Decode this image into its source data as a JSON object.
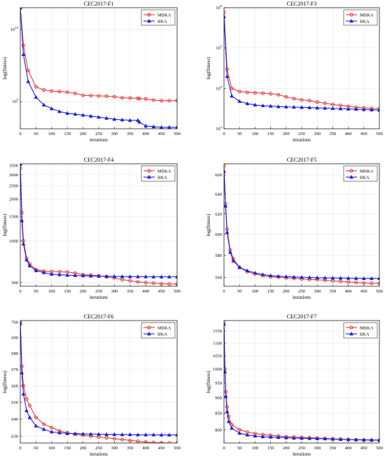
{
  "colors": {
    "mbka": "#e03a3a",
    "bka": "#1f1fd0",
    "axis": "#000000",
    "grid": "#e6e6e6"
  },
  "chart_data": [
    {
      "type": "line",
      "title": "CEC2017-F1",
      "xlabel": "iterations",
      "ylabel": "log(fitness)",
      "yscale": "log",
      "xlim": [
        0,
        500
      ],
      "ylim": [
        420000000,
        20000000000
      ],
      "xticks": [
        0,
        50,
        100,
        150,
        200,
        250,
        300,
        350,
        400,
        450,
        500
      ],
      "yticks": [
        1000000000,
        10000000000
      ],
      "ytick_labels": [
        "10^9",
        "10^10"
      ],
      "grid": true,
      "legend": "top-right",
      "x": [
        0,
        10,
        25,
        50,
        75,
        100,
        125,
        150,
        175,
        200,
        225,
        250,
        275,
        300,
        325,
        350,
        375,
        380,
        400,
        425,
        450,
        475,
        500
      ],
      "series": [
        {
          "name": "MBKA",
          "marker": "circle",
          "values": [
            20000000000,
            6000000000,
            2700000000,
            1600000000,
            1450000000,
            1400000000,
            1380000000,
            1350000000,
            1300000000,
            1220000000,
            1210000000,
            1200000000,
            1190000000,
            1170000000,
            1130000000,
            1120000000,
            1110000000,
            1100000000,
            1090000000,
            1050000000,
            1030000000,
            1030000000,
            1030000000
          ]
        },
        {
          "name": "BKA",
          "marker": "triangle",
          "values": [
            20000000000,
            4500000000,
            1900000000,
            1150000000,
            900000000,
            800000000,
            730000000,
            690000000,
            670000000,
            650000000,
            630000000,
            610000000,
            590000000,
            570000000,
            560000000,
            550000000,
            550000000,
            520000000,
            460000000,
            450000000,
            440000000,
            440000000,
            440000000
          ]
        }
      ]
    },
    {
      "type": "line",
      "title": "CEC2017-F3",
      "xlabel": "iterations",
      "ylabel": "log(fitness)",
      "yscale": "log",
      "xlim": [
        0,
        500
      ],
      "ylim": [
        1000,
        1000000
      ],
      "xticks": [
        0,
        50,
        100,
        150,
        200,
        250,
        300,
        350,
        400,
        450,
        500
      ],
      "yticks": [
        1000,
        10000,
        100000,
        1000000
      ],
      "ytick_labels": [
        "10^3",
        "10^4",
        "10^5",
        "10^6"
      ],
      "grid": true,
      "legend": "top-right",
      "x": [
        0,
        10,
        25,
        50,
        75,
        100,
        125,
        150,
        175,
        200,
        225,
        250,
        275,
        300,
        325,
        350,
        375,
        400,
        425,
        450,
        475,
        500
      ],
      "series": [
        {
          "name": "MBKA",
          "marker": "circle",
          "values": [
            780000,
            30000,
            10000,
            8400,
            8000,
            7800,
            7600,
            7400,
            7000,
            6200,
            5600,
            5200,
            5000,
            4600,
            4300,
            4000,
            3800,
            3600,
            3400,
            3300,
            3200,
            3150
          ]
        },
        {
          "name": "BKA",
          "marker": "triangle",
          "values": [
            600000,
            20000,
            6500,
            4800,
            4200,
            3900,
            3750,
            3650,
            3550,
            3500,
            3450,
            3400,
            3350,
            3300,
            3250,
            3200,
            3150,
            3100,
            3050,
            3000,
            2950,
            2900
          ]
        }
      ]
    },
    {
      "type": "line",
      "title": "CEC2017-F4",
      "xlabel": "iterations",
      "ylabel": "log(fitness)",
      "yscale": "log",
      "xlim": [
        0,
        500
      ],
      "ylim": [
        470,
        3600
      ],
      "xticks": [
        0,
        50,
        100,
        150,
        200,
        250,
        300,
        350,
        400,
        450,
        500
      ],
      "yticks": [
        500,
        1000,
        1500,
        2000,
        2500,
        3000,
        3500
      ],
      "ytick_labels": [
        "500",
        "1000",
        "1500",
        "2000",
        "2500",
        "3000",
        "3500"
      ],
      "grid": true,
      "legend": "top-right",
      "x": [
        0,
        5,
        10,
        20,
        30,
        50,
        75,
        100,
        125,
        150,
        175,
        200,
        225,
        250,
        275,
        300,
        325,
        350,
        375,
        400,
        425,
        450,
        475,
        500
      ],
      "series": [
        {
          "name": "MBKA",
          "marker": "circle",
          "values": [
            3350,
            1600,
            1000,
            750,
            680,
            620,
            605,
            600,
            598,
            595,
            585,
            570,
            565,
            560,
            550,
            540,
            525,
            515,
            505,
            500,
            495,
            490,
            488,
            487
          ]
        },
        {
          "name": "BKA",
          "marker": "triangle",
          "values": [
            3600,
            1400,
            950,
            730,
            660,
            610,
            590,
            575,
            570,
            565,
            562,
            560,
            558,
            556,
            555,
            554,
            553,
            552,
            551,
            551,
            550,
            550,
            550,
            550
          ]
        }
      ]
    },
    {
      "type": "line",
      "title": "CEC2017-F5",
      "xlabel": "iterations",
      "ylabel": "log(fitness)",
      "yscale": "log",
      "xlim": [
        0,
        500
      ],
      "ylim": [
        552,
        672
      ],
      "xticks": [
        0,
        50,
        100,
        150,
        200,
        250,
        300,
        350,
        400,
        450,
        500
      ],
      "yticks": [
        560,
        580,
        600,
        620,
        640,
        660
      ],
      "ytick_labels": [
        "560",
        "580",
        "600",
        "620",
        "640",
        "660"
      ],
      "grid": true,
      "legend": "top-right",
      "x": [
        0,
        5,
        10,
        20,
        30,
        50,
        75,
        100,
        125,
        150,
        175,
        200,
        225,
        250,
        275,
        300,
        325,
        350,
        375,
        400,
        425,
        450,
        475,
        500
      ],
      "series": [
        {
          "name": "MBKA",
          "marker": "circle",
          "values": [
            670,
            630,
            605,
            585,
            577,
            569,
            565,
            563,
            561.5,
            560.5,
            560,
            559.5,
            559,
            558.5,
            558,
            557.8,
            557.3,
            556.8,
            556.3,
            555.8,
            555.4,
            555,
            554.7,
            554.5
          ]
        },
        {
          "name": "BKA",
          "marker": "triangle",
          "values": [
            664,
            628,
            602,
            583,
            575,
            569,
            566,
            564,
            562.5,
            561.5,
            561,
            560.6,
            560.3,
            560,
            559.8,
            559.6,
            559.5,
            559.4,
            559.3,
            559.2,
            559.1,
            559,
            559,
            559
          ]
        }
      ]
    },
    {
      "type": "line",
      "title": "CEC2017-F6",
      "xlabel": "iterations",
      "ylabel": "log(fitness)",
      "yscale": "log",
      "xlim": [
        0,
        500
      ],
      "ylim": [
        626,
        701
      ],
      "xticks": [
        0,
        50,
        100,
        150,
        200,
        250,
        300,
        350,
        400,
        450,
        500
      ],
      "yticks": [
        630,
        640,
        650,
        660,
        670,
        680,
        690,
        700
      ],
      "ytick_labels": [
        "630",
        "640",
        "650",
        "660",
        "670",
        "680",
        "690",
        "700"
      ],
      "grid": true,
      "legend": "top-right",
      "x": [
        0,
        5,
        10,
        20,
        30,
        50,
        75,
        100,
        125,
        150,
        175,
        200,
        225,
        250,
        275,
        300,
        325,
        350,
        375,
        400,
        425,
        450,
        475,
        500
      ],
      "series": [
        {
          "name": "MBKA",
          "marker": "circle",
          "values": [
            700,
            672,
            660,
            652,
            648,
            641,
            637,
            635,
            633,
            632,
            631,
            630.5,
            630,
            629.5,
            629,
            628.5,
            628,
            627.5,
            627,
            626.5,
            626.3,
            626.1,
            626,
            626
          ]
        },
        {
          "name": "BKA",
          "marker": "triangle",
          "values": [
            699,
            668,
            655,
            645,
            641,
            636,
            634,
            632.5,
            632,
            631.5,
            631.5,
            631.3,
            631.2,
            631.1,
            631,
            631,
            630.9,
            630.9,
            630.8,
            630.8,
            630.8,
            630.7,
            630.7,
            630.7
          ]
        }
      ]
    },
    {
      "type": "line",
      "title": "CEC2017-F7",
      "xlabel": "iterations",
      "ylabel": "log(fitness)",
      "yscale": "log",
      "xlim": [
        0,
        500
      ],
      "ylim": [
        762,
        1195
      ],
      "xticks": [
        0,
        50,
        100,
        150,
        200,
        250,
        300,
        350,
        400,
        450,
        500
      ],
      "yticks": [
        800,
        850,
        900,
        950,
        1000,
        1050,
        1100,
        1150
      ],
      "ytick_labels": [
        "800",
        "850",
        "900",
        "950",
        "1000",
        "1050",
        "1100",
        "1150"
      ],
      "grid": true,
      "legend": "top-right",
      "x": [
        0,
        3,
        6,
        10,
        15,
        25,
        50,
        75,
        100,
        125,
        150,
        175,
        200,
        225,
        250,
        275,
        300,
        325,
        350,
        375,
        400,
        425,
        450,
        475,
        500
      ],
      "series": [
        {
          "name": "MBKA",
          "marker": "circle",
          "values": [
            1190,
            1000,
            920,
            870,
            840,
            815,
            800,
            793,
            789,
            786,
            784,
            782,
            780,
            779,
            778,
            777,
            776,
            775,
            774,
            773,
            772,
            771,
            770.5,
            770,
            770
          ]
        },
        {
          "name": "BKA",
          "marker": "triangle",
          "values": [
            1180,
            990,
            905,
            855,
            825,
            805,
            790,
            785,
            782,
            780,
            779,
            778,
            777,
            776,
            775.5,
            775,
            774.5,
            774,
            773,
            772.5,
            772,
            771.5,
            771,
            770.5,
            770
          ]
        }
      ]
    }
  ]
}
